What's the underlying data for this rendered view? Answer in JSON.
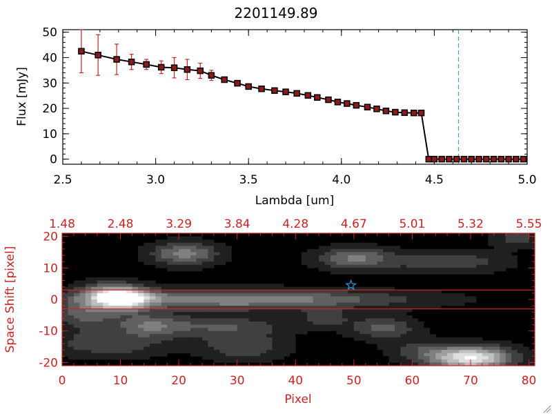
{
  "colors": {
    "axis_top": "#000000",
    "axis_bottom": "#cc2222",
    "errorbar": "#cc2222",
    "marker": "#8b1a1a",
    "vline": "#2a8fd0",
    "star": "#2a8fd0",
    "band": "#cc2222"
  },
  "chart_data": [
    {
      "type": "line",
      "title": "2201149.89",
      "xlabel": "Lambda [um]",
      "ylabel": "Flux [mJy]",
      "xlim": [
        2.5,
        5.0
      ],
      "ylim": [
        -2,
        51
      ],
      "xticks": [
        "2.5",
        "3.0",
        "3.5",
        "4.0",
        "4.5",
        "5.0"
      ],
      "yticks": [
        "0",
        "10",
        "20",
        "30",
        "40",
        "50"
      ],
      "vline_x": 4.63,
      "grid": false,
      "series": [
        {
          "x": [
            2.6,
            2.69,
            2.79,
            2.87,
            2.95,
            3.03,
            3.1,
            3.17,
            3.24,
            3.3,
            3.37,
            3.44,
            3.5,
            3.57,
            3.64,
            3.7,
            3.76,
            3.82,
            3.87,
            3.93,
            3.98,
            4.03,
            4.08,
            4.14,
            4.19,
            4.24,
            4.29,
            4.34,
            4.39,
            4.43,
            4.47,
            4.5,
            4.54,
            4.58,
            4.62,
            4.66,
            4.7,
            4.74,
            4.78,
            4.82,
            4.86,
            4.9,
            4.94,
            4.98
          ],
          "y": [
            42.5,
            41.0,
            39.3,
            38.3,
            37.3,
            36.2,
            36.0,
            35.3,
            34.8,
            33.0,
            31.3,
            29.9,
            28.6,
            27.7,
            27.0,
            26.5,
            25.9,
            25.1,
            24.3,
            23.4,
            22.5,
            21.9,
            21.2,
            20.5,
            19.8,
            19.0,
            18.5,
            18.3,
            18.2,
            18.2,
            0,
            0,
            0,
            0,
            0,
            0,
            0,
            0,
            0,
            0,
            0,
            0,
            0,
            0
          ],
          "err": [
            8.5,
            8.0,
            6.0,
            3.0,
            2.0,
            2.5,
            4.0,
            4.0,
            3.0,
            2.0,
            1.0,
            0.5,
            0.5,
            0.5,
            0.5,
            0.5,
            0.5,
            0.5,
            0.5,
            0.5,
            0.5,
            0.5,
            0.5,
            0.5,
            0.5,
            0.5,
            0.5,
            0.5,
            0.5,
            0.5,
            0,
            0,
            0,
            0,
            0,
            0,
            0,
            0,
            0,
            0,
            0,
            0,
            0,
            0
          ]
        }
      ]
    },
    {
      "type": "heatmap",
      "xlabel": "Pixel",
      "ylabel": "Space Shift [pixel]",
      "xlim": [
        0,
        81
      ],
      "ylim": [
        -21,
        21
      ],
      "xticks": [
        "0",
        "10",
        "20",
        "30",
        "40",
        "50",
        "60",
        "70",
        "80"
      ],
      "yticks": [
        "-20",
        "-10",
        "0",
        "10",
        "20"
      ],
      "top_tick_labels": [
        "1.48",
        "2.48",
        "3.29",
        "3.84",
        "4.28",
        "4.67",
        "5.01",
        "5.32",
        "5.55"
      ],
      "star": {
        "x": 49.5,
        "y": 4.5
      },
      "aperture": [
        -3,
        3
      ],
      "blobs": [
        {
          "x": 10.5,
          "y": 0.5,
          "sx": 3.2,
          "sy": 2.6,
          "a": 0.95
        },
        {
          "x": 30,
          "y": 0,
          "sx": 20,
          "sy": 2.2,
          "a": 0.55
        },
        {
          "x": 70,
          "y": -18.5,
          "sx": 5,
          "sy": 2.6,
          "a": 0.95
        },
        {
          "x": 21,
          "y": 14.5,
          "sx": 4,
          "sy": 2.6,
          "a": 0.5
        },
        {
          "x": 50,
          "y": 13,
          "sx": 4.5,
          "sy": 2.5,
          "a": 0.45
        },
        {
          "x": 66,
          "y": 12,
          "sx": 7,
          "sy": 2.5,
          "a": 0.3
        },
        {
          "x": 4,
          "y": -5,
          "sx": 4,
          "sy": 3,
          "a": 0.35
        },
        {
          "x": 8,
          "y": -14,
          "sx": 7,
          "sy": 3,
          "a": 0.3
        },
        {
          "x": 15,
          "y": -8,
          "sx": 4,
          "sy": 2.5,
          "a": 0.35
        },
        {
          "x": 27,
          "y": -8.5,
          "sx": 8,
          "sy": 2.5,
          "a": 0.3
        },
        {
          "x": 31,
          "y": -15,
          "sx": 5,
          "sy": 3,
          "a": 0.3
        },
        {
          "x": 55,
          "y": -9,
          "sx": 4,
          "sy": 2.5,
          "a": 0.35
        },
        {
          "x": 61,
          "y": -16,
          "sx": 4,
          "sy": 2.5,
          "a": 0.2
        },
        {
          "x": 78,
          "y": 19.5,
          "sx": 3,
          "sy": 2,
          "a": 0.25
        },
        {
          "x": 45,
          "y": -6,
          "sx": 3,
          "sy": 2,
          "a": 0.25
        },
        {
          "x": 6,
          "y": 2,
          "sx": 3,
          "sy": 2.5,
          "a": 0.3
        }
      ]
    }
  ]
}
